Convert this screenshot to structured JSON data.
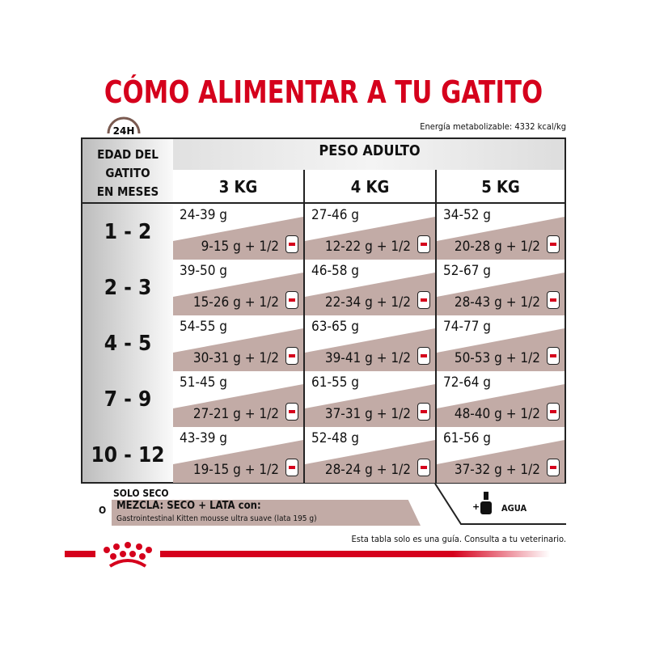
{
  "title": "CÓMO ALIMENTAR A TU GATITO",
  "clock_label": "24H",
  "energy": "Energía metabolizable: 4332 kcal/kg",
  "age_header": [
    "EDAD DEL",
    "GATITO",
    "EN MESES"
  ],
  "weight_header": "PESO ADULTO",
  "weights": [
    "3 KG",
    "4 KG",
    "5 KG"
  ],
  "rows": [
    {
      "age": "1 - 2",
      "cells": [
        {
          "dry": "24-39 g",
          "mix": "9-15 g + 1/2"
        },
        {
          "dry": "27-46 g",
          "mix": "12-22 g + 1/2"
        },
        {
          "dry": "34-52 g",
          "mix": "20-28 g + 1/2"
        }
      ]
    },
    {
      "age": "2 - 3",
      "cells": [
        {
          "dry": "39-50 g",
          "mix": "15-26 g + 1/2"
        },
        {
          "dry": "46-58 g",
          "mix": "22-34 g + 1/2"
        },
        {
          "dry": "52-67 g",
          "mix": "28-43 g + 1/2"
        }
      ]
    },
    {
      "age": "4 - 5",
      "cells": [
        {
          "dry": "54-55 g",
          "mix": "30-31 g + 1/2"
        },
        {
          "dry": "63-65 g",
          "mix": "39-41 g + 1/2"
        },
        {
          "dry": "74-77 g",
          "mix": "50-53 g + 1/2"
        }
      ]
    },
    {
      "age": "7 - 9",
      "cells": [
        {
          "dry": "51-45 g",
          "mix": "27-21 g + 1/2"
        },
        {
          "dry": "61-55 g",
          "mix": "37-31 g + 1/2"
        },
        {
          "dry": "72-64 g",
          "mix": "48-40 g + 1/2"
        }
      ]
    },
    {
      "age": "10 - 12",
      "cells": [
        {
          "dry": "43-39 g",
          "mix": "19-15 g + 1/2"
        },
        {
          "dry": "52-48 g",
          "mix": "28-24 g + 1/2"
        },
        {
          "dry": "61-56 g",
          "mix": "37-32 g + 1/2"
        }
      ]
    }
  ],
  "legend": {
    "solo": "SOLO SECO",
    "o": "O",
    "mezcla": "MEZCLA: SECO + LATA con:",
    "product": "Gastrointestinal Kitten mousse ultra suave (lata 195 g)",
    "plus": "+",
    "agua": "AGUA"
  },
  "disclaimer": "Esta tabla solo es una guía. Consulta a tu veterinario.",
  "colors": {
    "brand_red": "#d5001c",
    "mix_band": "#c2aba6",
    "clock": "#7a5a50"
  }
}
